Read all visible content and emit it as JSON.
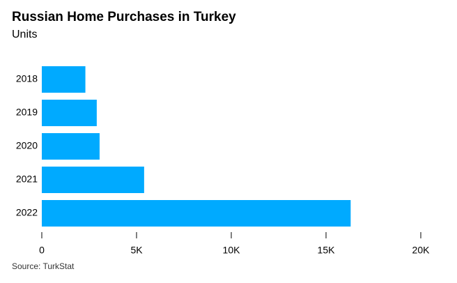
{
  "chart_data": {
    "type": "barh",
    "title": "Russian Home Purchases in Turkey",
    "subtitle": "Units",
    "categories": [
      "2018",
      "2019",
      "2020",
      "2021",
      "2022"
    ],
    "values": [
      2300,
      2900,
      3050,
      5400,
      16300
    ],
    "color": "#00aaff",
    "xlim": [
      0,
      20000
    ],
    "xticks": [
      0,
      {
        "value": 5000,
        "label": "5K"
      },
      {
        "value": 10000,
        "label": "10K"
      },
      {
        "value": 15000,
        "label": "15K"
      },
      {
        "value": 20000,
        "label": "20K"
      }
    ],
    "source": "Source: TurkStat"
  }
}
